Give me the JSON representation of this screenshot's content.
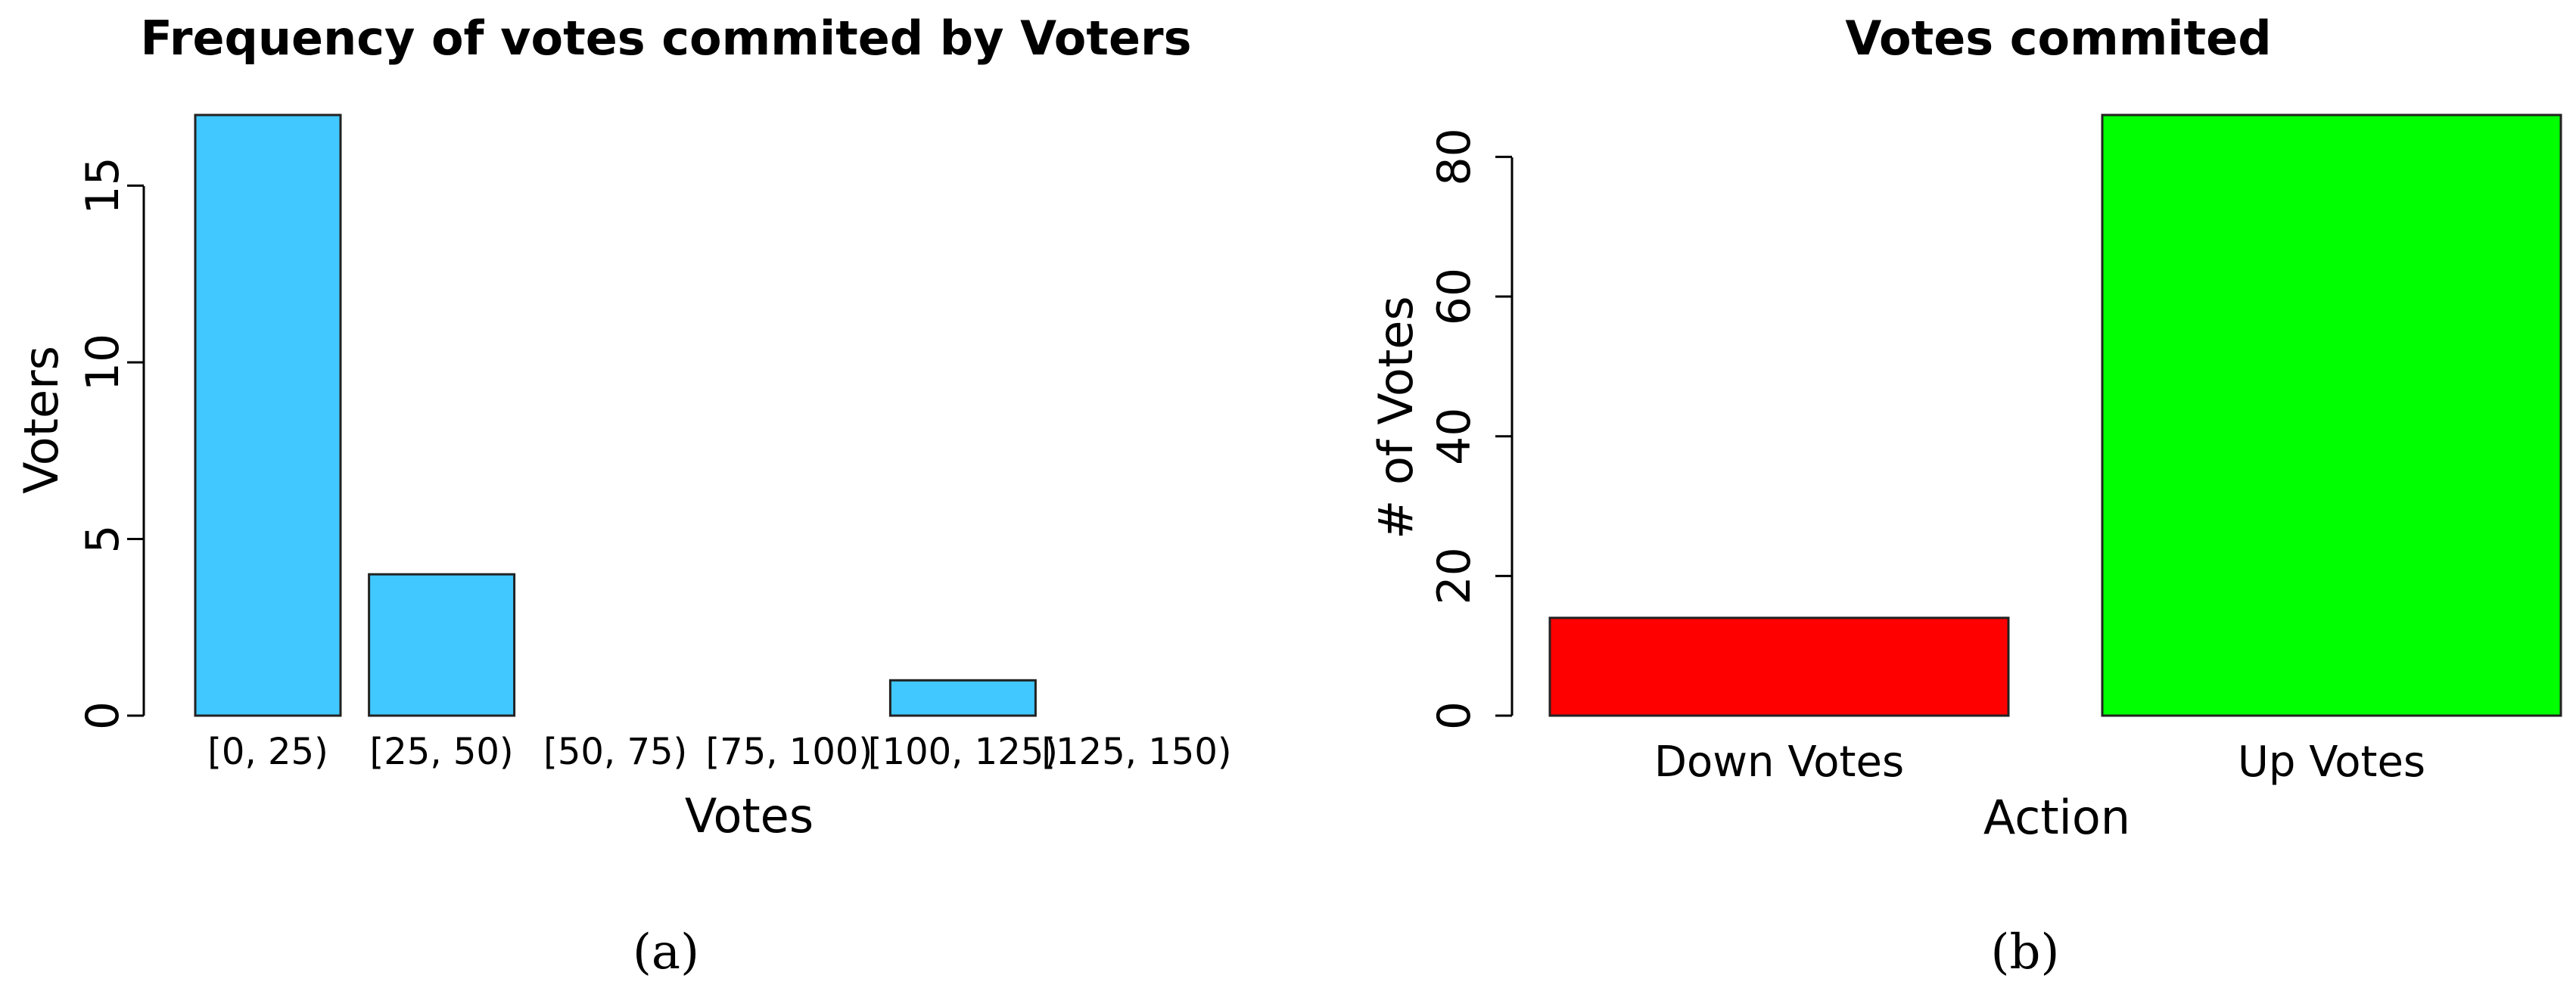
{
  "chart_data": [
    {
      "type": "bar",
      "title": "Frequency of votes commited by Voters",
      "xlabel": "Votes",
      "ylabel": "Voters",
      "categories": [
        "[0, 25)",
        "[25, 50)",
        "[50, 75)",
        "[75, 100)",
        "[100, 125)",
        "[125, 150)"
      ],
      "values": [
        17,
        4,
        0,
        0,
        1,
        0
      ],
      "yticks": [
        0,
        5,
        10,
        15
      ],
      "ylim": [
        0,
        17
      ],
      "bar_color": "#40c8ff",
      "grid": false,
      "caption": "(a)"
    },
    {
      "type": "bar",
      "title": "Votes commited",
      "xlabel": "Action",
      "ylabel": "# of Votes",
      "categories": [
        "Down Votes",
        "Up Votes"
      ],
      "values": [
        14,
        86
      ],
      "yticks": [
        0,
        20,
        40,
        60,
        80
      ],
      "ylim": [
        0,
        86
      ],
      "bar_colors": [
        "#ff0000",
        "#00ff00"
      ],
      "grid": false,
      "caption": "(b)"
    }
  ]
}
